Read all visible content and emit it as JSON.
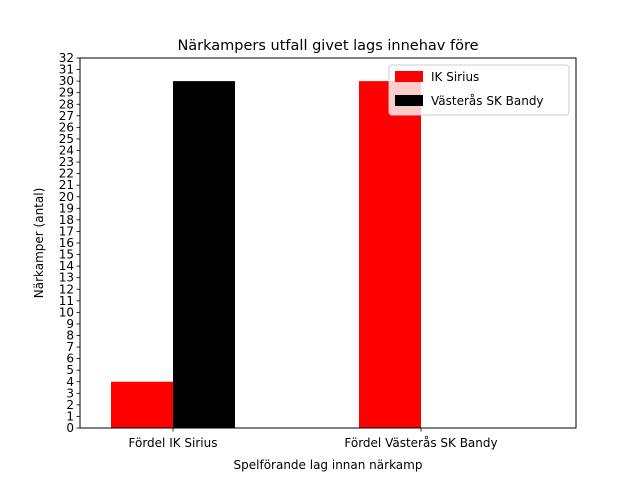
{
  "chart_data": {
    "type": "bar",
    "title": "Närkampers utfall givet lags innehav före",
    "xlabel": "Spelförande lag innan närkamp",
    "ylabel": "Närkamper (antal)",
    "categories": [
      "Fördel IK Sirius",
      "Fördel Västerås SK Bandy"
    ],
    "series": [
      {
        "name": "IK Sirius",
        "color": "#ff0000",
        "values": [
          4,
          30
        ]
      },
      {
        "name": "Västerås SK Bandy",
        "color": "#000000",
        "values": [
          30,
          0
        ]
      }
    ],
    "ylim": [
      0,
      32
    ],
    "yticks": [
      0,
      1,
      2,
      3,
      4,
      5,
      6,
      7,
      8,
      9,
      10,
      11,
      12,
      13,
      14,
      15,
      16,
      17,
      18,
      19,
      20,
      21,
      22,
      23,
      24,
      25,
      26,
      27,
      28,
      29,
      30,
      31,
      32
    ],
    "grid": false,
    "legend_position": "top-right"
  }
}
